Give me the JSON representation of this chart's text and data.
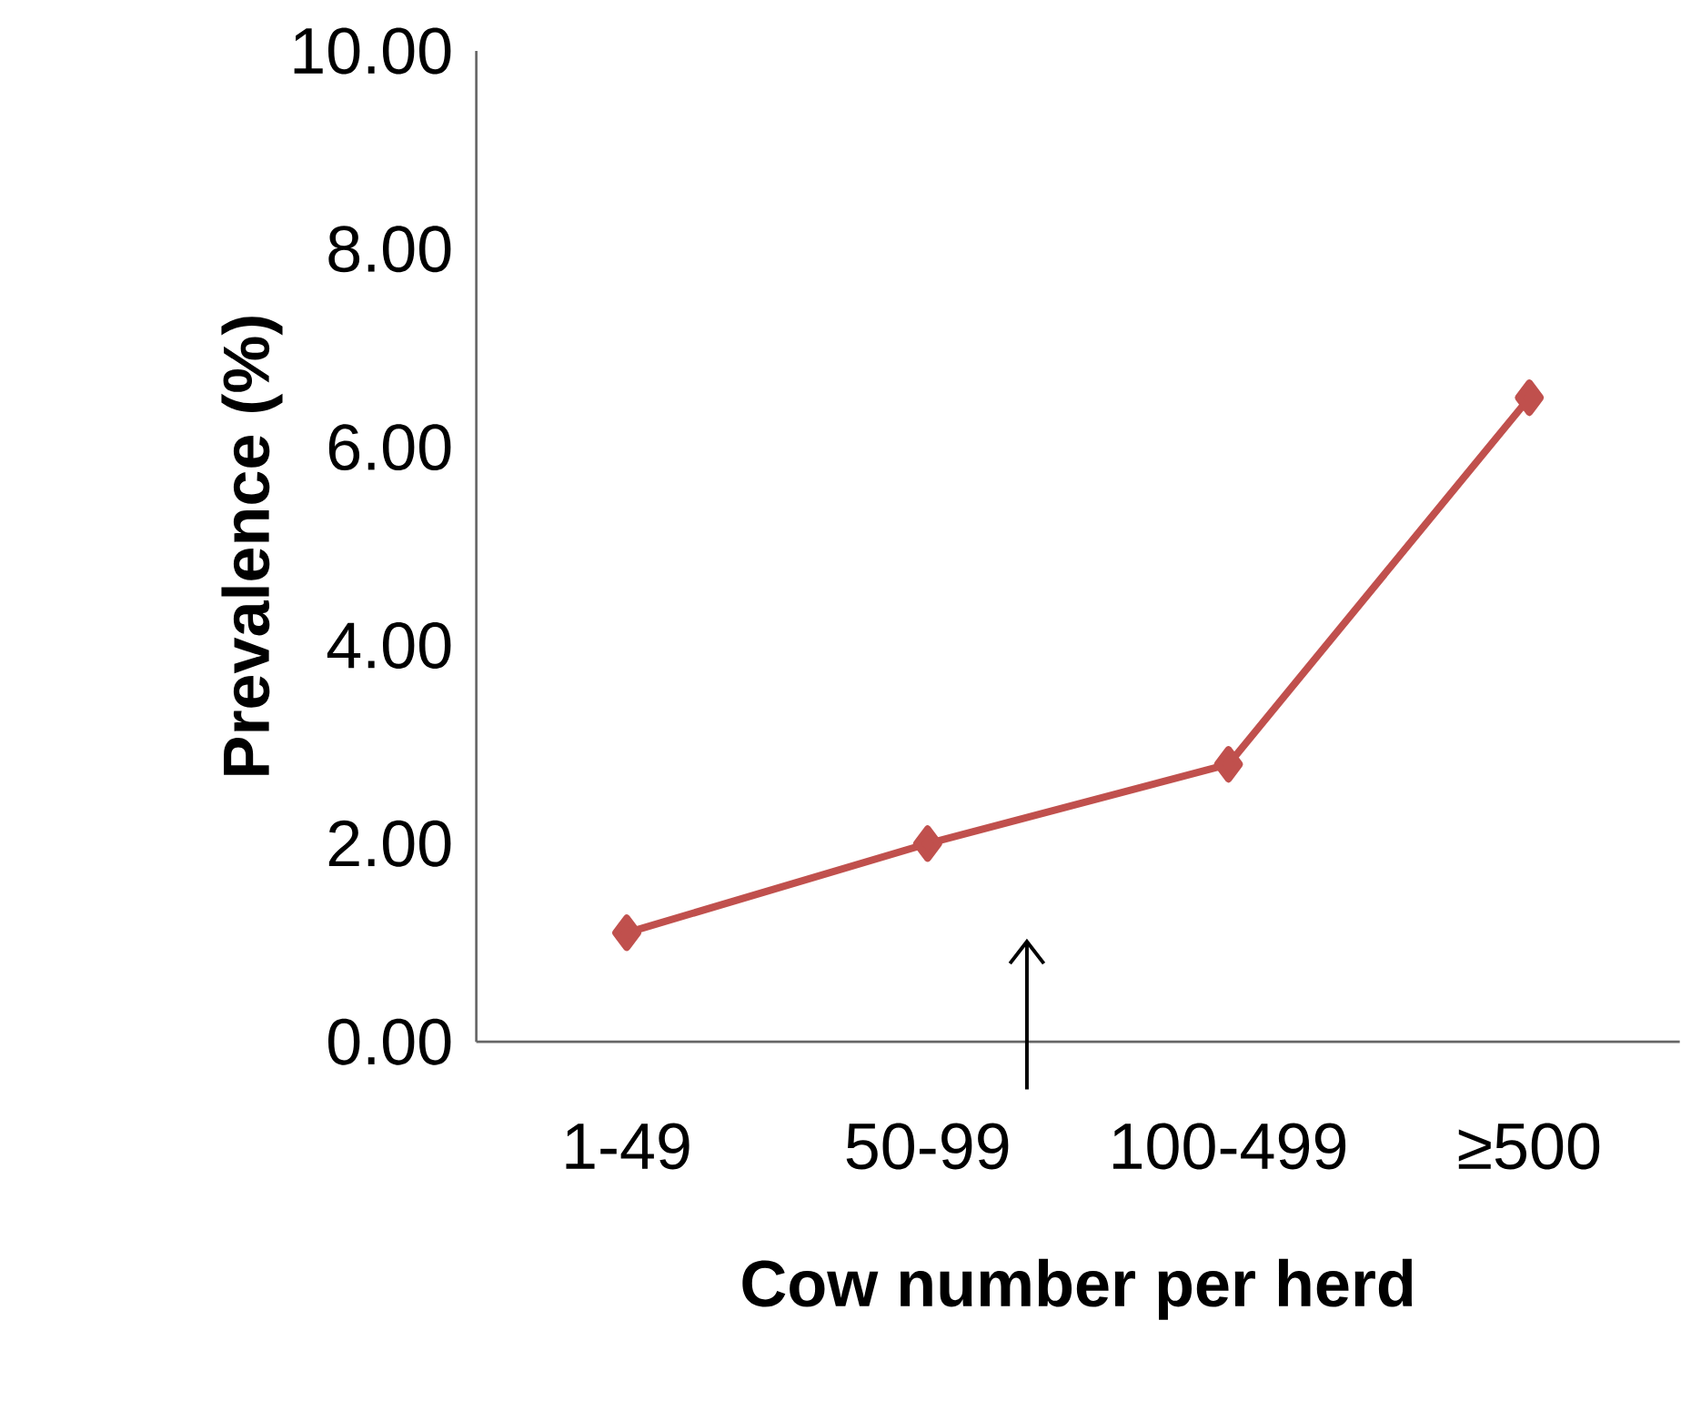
{
  "chart_data": {
    "type": "line",
    "xlabel": "Cow number per herd",
    "ylabel": "Prevalence (%)",
    "categories": [
      "1-49",
      "50-99",
      "100-499",
      "≥500"
    ],
    "series": [
      {
        "color": "#c0504d",
        "values": [
          1.1,
          2.0,
          2.8,
          6.5
        ]
      }
    ],
    "ylim": [
      0,
      10
    ],
    "yticks": [
      {
        "value": 0,
        "label": "0.00"
      },
      {
        "value": 2,
        "label": "2.00"
      },
      {
        "value": 4,
        "label": "4.00"
      },
      {
        "value": 6,
        "label": "6.00"
      },
      {
        "value": 8,
        "label": "8.00"
      },
      {
        "value": 10,
        "label": "10.00"
      }
    ],
    "grid": false,
    "marker": "diamond",
    "line_style": "solid"
  }
}
